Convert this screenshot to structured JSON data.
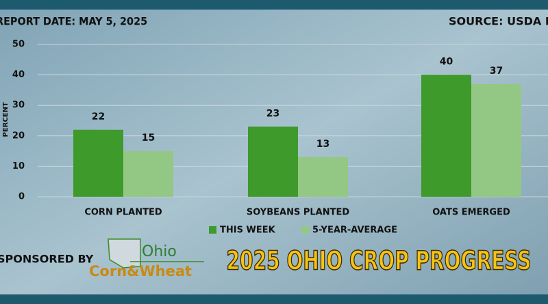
{
  "chart_data": {
    "type": "bar",
    "title": "2025 OHIO CROP PROGRESS",
    "report_date": "REPORT DATE: MAY 5,  2025",
    "source": "SOURCE: USDA NASS",
    "ylabel": "PERCENT",
    "categories": [
      "CORN PLANTED",
      "SOYBEANS PLANTED",
      "OATS EMERGED"
    ],
    "series": [
      {
        "name": "THIS WEEK",
        "color": "#3f9a2c",
        "values": [
          22,
          23,
          40
        ]
      },
      {
        "name": "5-YEAR-AVERAGE",
        "color": "#93c884",
        "values": [
          15,
          13,
          37
        ]
      }
    ],
    "ylim": [
      0,
      50
    ],
    "yticks": [
      0,
      10,
      20,
      30,
      40,
      50
    ],
    "grid": true
  },
  "sponsor": {
    "label": "SPONSORED BY",
    "logo_top": "Ohio",
    "logo_bottom": "Corn&Wheat"
  }
}
